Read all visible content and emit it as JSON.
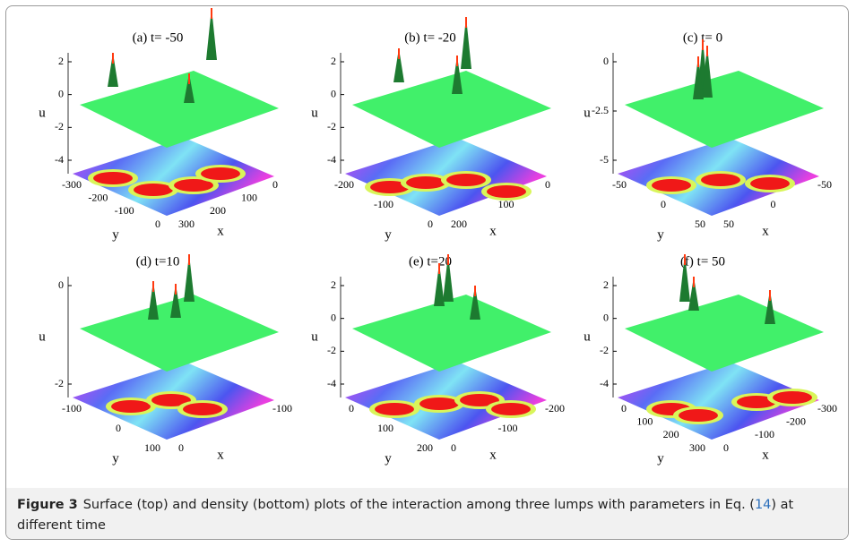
{
  "panels": [
    {
      "title": "(a) t= -50",
      "u_label": "u",
      "y_label": "y",
      "x_label": "x",
      "u_ticks": [
        "2",
        "0",
        "-2",
        "-4"
      ],
      "y_ticks": [
        "-300",
        "-200",
        "-100",
        "0"
      ],
      "x_ticks": [
        "300",
        "200",
        "100",
        "0"
      ]
    },
    {
      "title": "(b) t= -20",
      "u_label": "u",
      "y_label": "y",
      "x_label": "x",
      "u_ticks": [
        "2",
        "0",
        "-2",
        "-4"
      ],
      "y_ticks": [
        "-200",
        "-100",
        "0"
      ],
      "x_ticks": [
        "200",
        "100",
        "0"
      ]
    },
    {
      "title": "(c) t= 0",
      "u_label": "u",
      "y_label": "y",
      "x_label": "x",
      "u_ticks": [
        "0",
        "-2.5",
        "-5"
      ],
      "y_ticks": [
        "-50",
        "0",
        "50"
      ],
      "x_ticks": [
        "50",
        "0",
        "-50"
      ]
    },
    {
      "title": "(d) t=10",
      "u_label": "u",
      "y_label": "y",
      "x_label": "x",
      "u_ticks": [
        "0",
        "-2"
      ],
      "y_ticks": [
        "-100",
        "0",
        "100"
      ],
      "x_ticks": [
        "0",
        "-100"
      ]
    },
    {
      "title": "(e) t=20",
      "u_label": "u",
      "y_label": "y",
      "x_label": "x",
      "u_ticks": [
        "2",
        "0",
        "-2",
        "-4"
      ],
      "y_ticks": [
        "0",
        "100",
        "200"
      ],
      "x_ticks": [
        "0",
        "-100",
        "-200"
      ]
    },
    {
      "title": "(f) t= 50",
      "u_label": "u",
      "y_label": "y",
      "x_label": "x",
      "u_ticks": [
        "2",
        "0",
        "-2",
        "-4"
      ],
      "y_ticks": [
        "0",
        "100",
        "200",
        "300"
      ],
      "x_ticks": [
        "0",
        "-100",
        "-200",
        "-300"
      ]
    }
  ],
  "caption": {
    "label": "Figure 3",
    "text": "Surface (top) and density (bottom) plots of the interaction among three lumps with parameters in Eq. (",
    "ref": "14",
    "text_end": ") at different time"
  }
}
